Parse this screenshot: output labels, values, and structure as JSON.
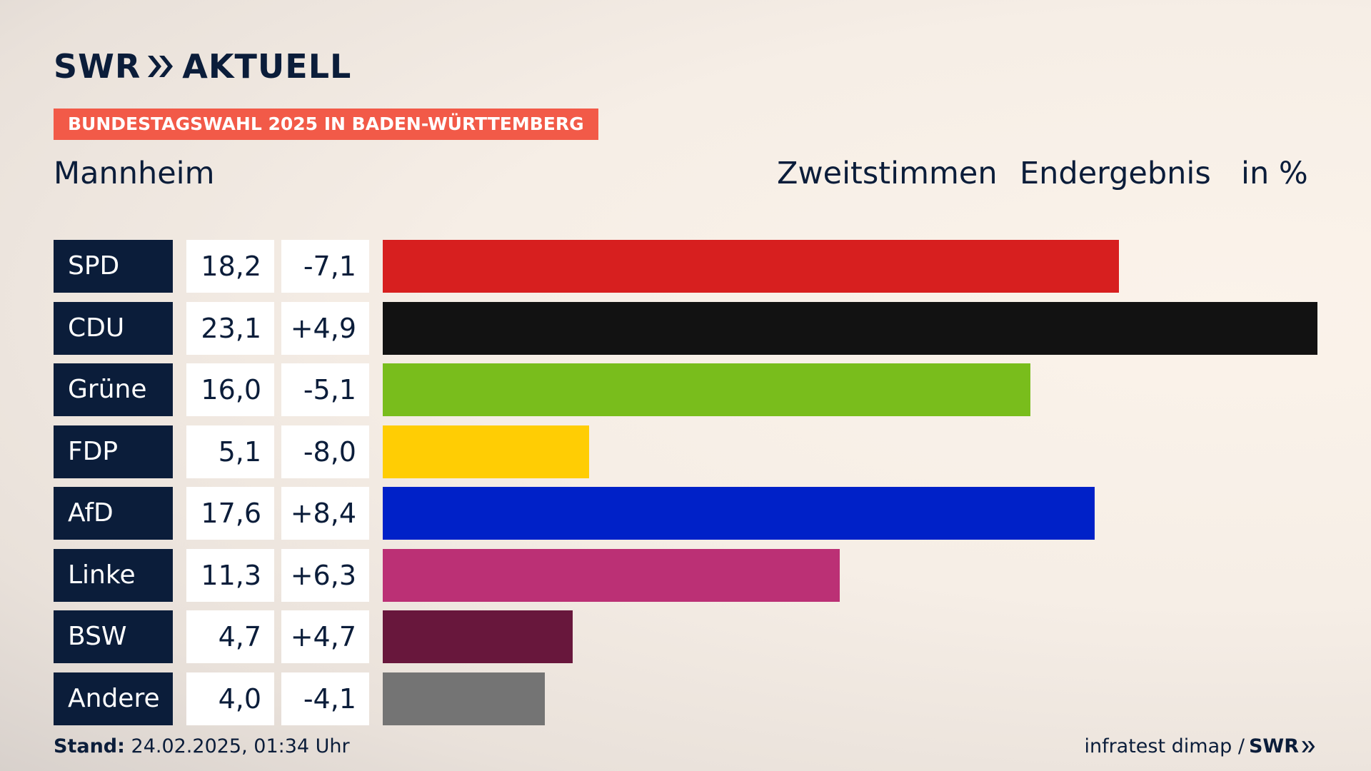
{
  "brand": {
    "logo_text": "SWR",
    "product": "AKTUELL"
  },
  "banner": "BUNDESTAGSWAHL 2025 IN BADEN-WÜRTTEMBERG",
  "region": "Mannheim",
  "header": {
    "vote_type": "Zweitstimmen",
    "status": "Endergebnis",
    "unit": "in %"
  },
  "chart_data": {
    "type": "bar",
    "orientation": "horizontal",
    "categories": [
      "SPD",
      "CDU",
      "Grüne",
      "FDP",
      "AfD",
      "Linke",
      "BSW",
      "Andere"
    ],
    "values": [
      18.2,
      23.1,
      16.0,
      5.1,
      17.6,
      11.3,
      4.7,
      4.0
    ],
    "value_labels": [
      "18,2",
      "23,1",
      "16,0",
      "5,1",
      "17,6",
      "11,3",
      "4,7",
      "4,0"
    ],
    "changes": [
      -7.1,
      4.9,
      -5.1,
      -8.0,
      8.4,
      6.3,
      4.7,
      -4.1
    ],
    "change_labels": [
      "-7,1",
      "+4,9",
      "-5,1",
      "-8,0",
      "+8,4",
      "+6,3",
      "+4,7",
      "-4,1"
    ],
    "colors": [
      "#d71f1f",
      "#121212",
      "#79bd1c",
      "#ffcd04",
      "#0021c8",
      "#bb3075",
      "#68173c",
      "#747474"
    ],
    "xlim": [
      0,
      23.1
    ],
    "grid": false,
    "legend": "none"
  },
  "footer": {
    "stand_label": "Stand:",
    "stand_value": "24.02.2025, 01:34 Uhr",
    "source": "infratest dimap /",
    "source_brand": "SWR"
  },
  "colors": {
    "navy": "#0b1d3a",
    "banner": "#f25a48"
  }
}
